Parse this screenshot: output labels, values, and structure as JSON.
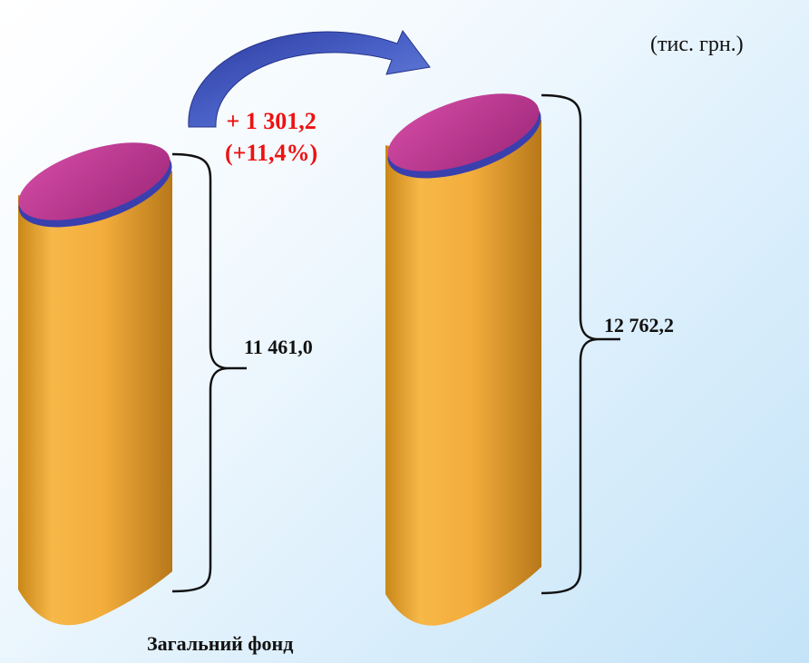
{
  "unit": "(тис. грн.)",
  "change": {
    "absolute": "+ 1 301,2",
    "percent": "(+11,4%)"
  },
  "chart_data": {
    "type": "bar",
    "categories": [
      "Загальний фонд"
    ],
    "series": [
      {
        "values": [
          11461.0
        ]
      },
      {
        "values": [
          12762.2
        ]
      }
    ],
    "value_labels": [
      "11 461,0",
      "12 762,2"
    ],
    "colors": {
      "body": "#f2a93b",
      "top": "#b5338a",
      "rim": "#3a3fae",
      "arrow": "#3b4db5",
      "change_text": "#ee1111"
    }
  }
}
